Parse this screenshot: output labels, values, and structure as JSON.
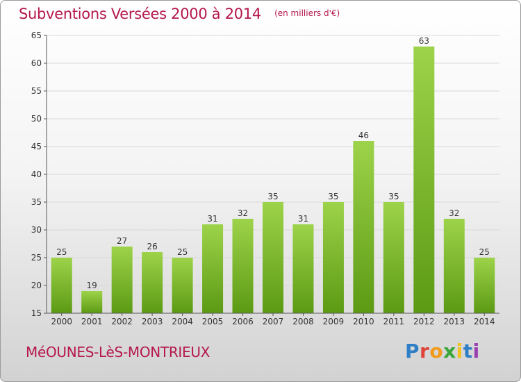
{
  "header": {
    "title": "Subventions Versées 2000 à 2014",
    "subtitle": "(en milliers d'€)"
  },
  "commune": "MéOUNES-LèS-MONTRIEUX",
  "logo": {
    "text": "Proxiti",
    "letter_colors": [
      "#2f7fc7",
      "#e0433a",
      "#f29a1c",
      "#3aa63a",
      "#f2c11c",
      "#2f7fc7",
      "#9c3fb0"
    ]
  },
  "colors": {
    "bar_light": "#9dd34a",
    "bar_dark": "#5c9a14",
    "text_accent": "#b5174e"
  },
  "chart_data": {
    "type": "bar",
    "categories": [
      "2000",
      "2001",
      "2002",
      "2003",
      "2004",
      "2005",
      "2006",
      "2007",
      "2008",
      "2009",
      "2010",
      "2011",
      "2012",
      "2013",
      "2014"
    ],
    "values": [
      25,
      19,
      27,
      26,
      25,
      31,
      32,
      35,
      31,
      35,
      46,
      35,
      63,
      32,
      25
    ],
    "ylim": [
      15,
      65
    ],
    "yticks": [
      15,
      20,
      25,
      30,
      35,
      40,
      45,
      50,
      55,
      60,
      65
    ],
    "grid": true,
    "data_labels": true
  }
}
